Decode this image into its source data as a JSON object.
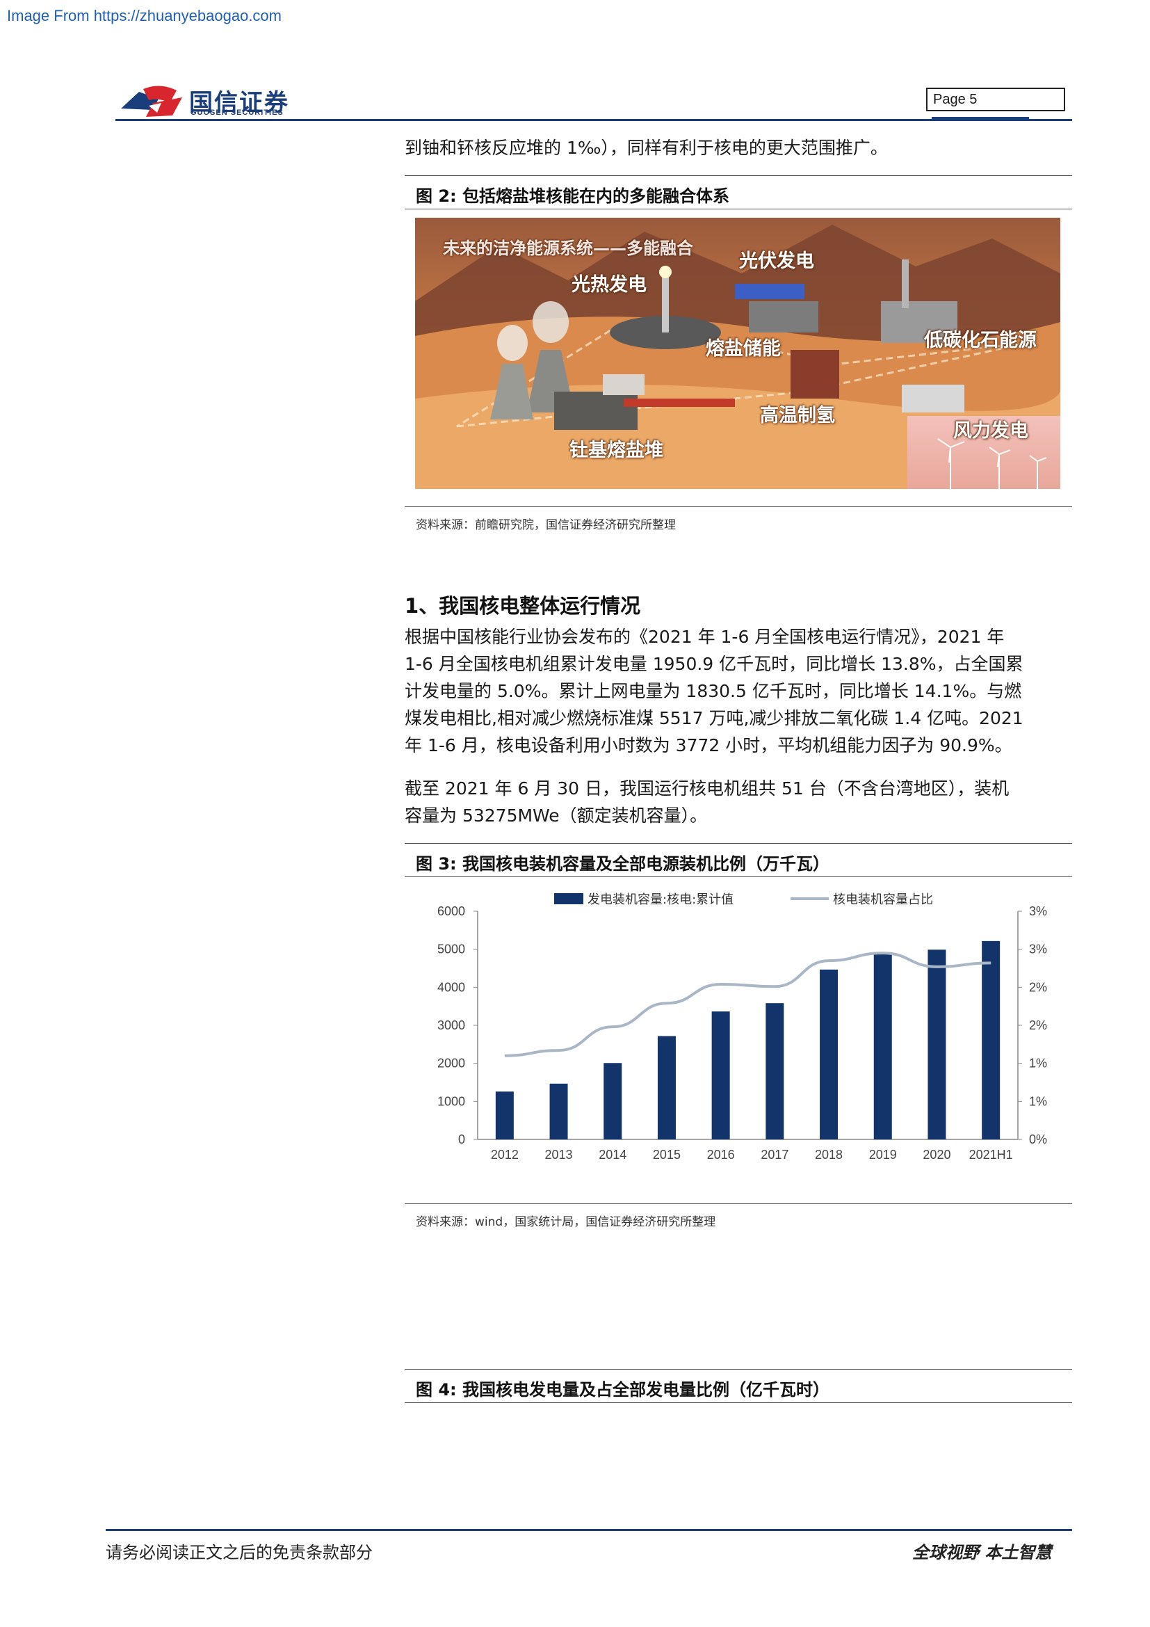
{
  "watermark": "Image From https://zhuanyebaogao.com",
  "header": {
    "logo_cn": "国信证券",
    "logo_en": "GUOSEN SECURITIES",
    "page_label": "Page  5"
  },
  "intro_line": "到铀和钚核反应堆的 1‰），同样有利于核电的更大范围推广。",
  "figure2": {
    "title": "图 2:  包括熔盐堆核能在内的多能融合体系",
    "image_labels": {
      "headline": "未来的洁净能源系统——多能融合",
      "solar_thermal": "光热发电",
      "pv": "光伏发电",
      "molten_storage": "熔盐储能",
      "low_carbon": "低碳化石能源",
      "hydrogen": "高温制氢",
      "wind": "风力发电",
      "thorium": "钍基熔盐堆"
    },
    "source": "资料来源：前瞻研究院，国信证券经济研究所整理"
  },
  "section1": {
    "heading": "1、我国核电整体运行情况",
    "para1": [
      "根据中国核能行业协会发布的《2021 年 1-6 月全国核电运行情况》，2021 年",
      "1-6 月全国核电机组累计发电量 1950.9 亿千瓦时，同比增长 13.8%，占全国累",
      "计发电量的 5.0%。累计上网电量为 1830.5 亿千瓦时，同比增长 14.1%。与燃",
      "煤发电相比,相对减少燃烧标准煤 5517 万吨,减少排放二氧化碳 1.4 亿吨。2021",
      "年 1-6 月，核电设备利用小时数为 3772 小时，平均机组能力因子为 90.9%。"
    ],
    "para2": [
      "截至 2021 年 6 月 30 日，我国运行核电机组共 51 台（不含台湾地区），装机",
      "容量为 53275MWe（额定装机容量）。"
    ]
  },
  "figure3": {
    "title": "图 3:  我国核电装机容量及全部电源装机比例（万千瓦）",
    "source": "资料来源：wind，国家统计局，国信证券经济研究所整理"
  },
  "figure4": {
    "title": "图 4:  我国核电发电量及占全部发电量比例（亿千瓦时）"
  },
  "footer": {
    "left": "请务必阅读正文之后的免责条款部分",
    "right": "全球视野   本土智慧"
  },
  "colors": {
    "bar": "#12346b",
    "line": "#a9b6c6",
    "brand": "#1a3d7c"
  },
  "chart_data": {
    "type": "bar",
    "categories": [
      "2012",
      "2013",
      "2014",
      "2015",
      "2016",
      "2017",
      "2018",
      "2019",
      "2020",
      "2021H1"
    ],
    "series": [
      {
        "name": "发电装机容量:核电:累计值",
        "type": "bar",
        "axis": "left",
        "values": [
          1257,
          1466,
          2008,
          2717,
          3364,
          3582,
          4466,
          4874,
          4989,
          5216
        ]
      },
      {
        "name": "核电装机容量占比",
        "type": "line",
        "axis": "right",
        "values": [
          1.1,
          1.17,
          1.48,
          1.79,
          2.04,
          2.01,
          2.35,
          2.45,
          2.27,
          2.32
        ]
      }
    ],
    "left_axis": {
      "ylim": [
        0,
        6000
      ],
      "ticks": [
        "0",
        "1000",
        "2000",
        "3000",
        "4000",
        "5000",
        "6000"
      ]
    },
    "right_axis": {
      "ylim": [
        0,
        3
      ],
      "ticks": [
        "0%",
        "1%",
        "1%",
        "2%",
        "2%",
        "3%",
        "3%"
      ]
    },
    "legend_position": "top-center",
    "grid": false
  }
}
